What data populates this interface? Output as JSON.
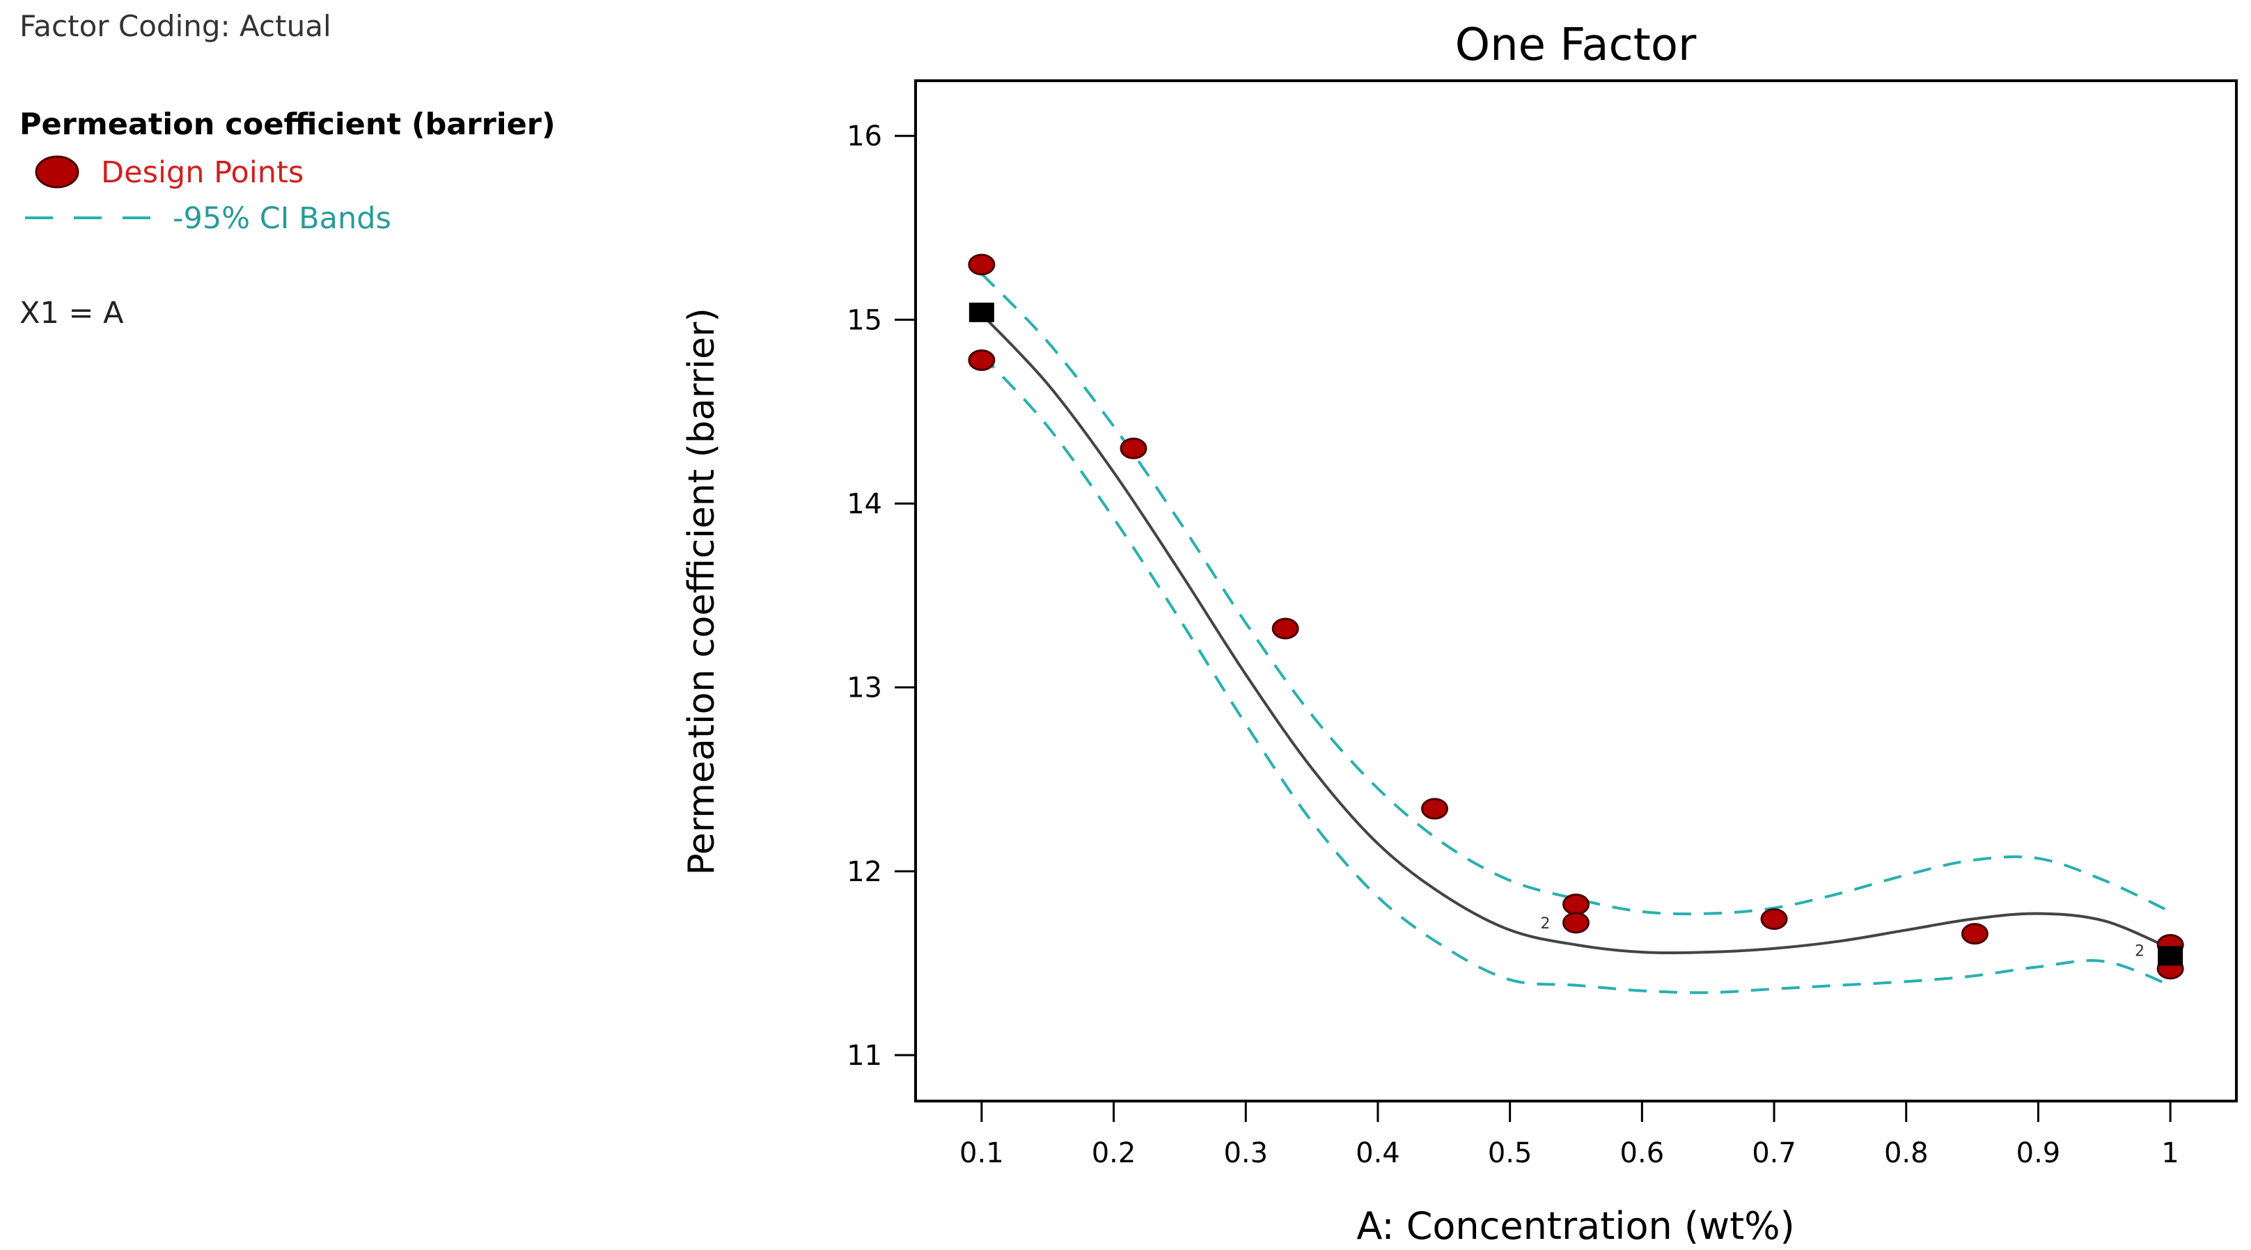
{
  "side_panel": {
    "factor_coding": "Factor Coding: Actual",
    "response_name": "Permeation coefficient (barrier)",
    "legend_design_points": "Design Points",
    "legend_ci_bands": "-95% CI Bands",
    "factor_mapping": "X1 = A"
  },
  "colors": {
    "design_point_fill": "#b00000",
    "design_point_stroke": "#4a0000",
    "design_point_label": "#d02020",
    "ci_band": "#2ab0b0",
    "fit_line": "#444444",
    "axis": "#000000",
    "prediction_marker": "#000000"
  },
  "chart_data": {
    "type": "line",
    "title": "One Factor",
    "xlabel": "A: Concentration (wt%)",
    "ylabel": "Permeation coefficient (barrier)",
    "xlim": [
      0.05,
      1.05
    ],
    "ylim": [
      10.75,
      16.3
    ],
    "x_ticks": [
      0.1,
      0.2,
      0.3,
      0.4,
      0.5,
      0.6,
      0.7,
      0.8,
      0.9,
      1
    ],
    "x_tick_labels": [
      "0.1",
      "0.2",
      "0.3",
      "0.4",
      "0.5",
      "0.6",
      "0.7",
      "0.8",
      "0.9",
      "1"
    ],
    "y_ticks": [
      11,
      12,
      13,
      14,
      15,
      16
    ],
    "y_tick_labels": [
      "11",
      "12",
      "13",
      "14",
      "15",
      "16"
    ],
    "legend_position": "left-outside",
    "series": [
      {
        "name": "Fit",
        "x": [
          0.1,
          0.15,
          0.2,
          0.25,
          0.3,
          0.35,
          0.4,
          0.45,
          0.5,
          0.55,
          0.6,
          0.65,
          0.7,
          0.75,
          0.8,
          0.85,
          0.9,
          0.95,
          1.0
        ],
        "values": [
          15.03,
          14.65,
          14.17,
          13.63,
          13.07,
          12.56,
          12.15,
          11.87,
          11.68,
          11.6,
          11.56,
          11.56,
          11.58,
          11.62,
          11.68,
          11.74,
          11.77,
          11.73,
          11.58
        ]
      },
      {
        "name": "95% CI Upper",
        "x": [
          0.1,
          0.15,
          0.2,
          0.25,
          0.3,
          0.35,
          0.4,
          0.45,
          0.5,
          0.55,
          0.6,
          0.65,
          0.7,
          0.75,
          0.8,
          0.85,
          0.9,
          0.95,
          1.0
        ],
        "values": [
          15.25,
          14.88,
          14.42,
          13.9,
          13.35,
          12.85,
          12.45,
          12.15,
          11.95,
          11.85,
          11.78,
          11.77,
          11.8,
          11.88,
          11.98,
          12.06,
          12.07,
          11.95,
          11.78
        ]
      },
      {
        "name": "95% CI Lower",
        "x": [
          0.1,
          0.15,
          0.2,
          0.25,
          0.3,
          0.35,
          0.4,
          0.45,
          0.5,
          0.55,
          0.6,
          0.65,
          0.7,
          0.75,
          0.8,
          0.85,
          0.9,
          0.95,
          1.0
        ],
        "values": [
          14.81,
          14.42,
          13.92,
          13.37,
          12.8,
          12.27,
          11.86,
          11.59,
          11.41,
          11.38,
          11.35,
          11.34,
          11.36,
          11.38,
          11.4,
          11.43,
          11.48,
          11.51,
          11.38
        ]
      }
    ],
    "design_points": [
      {
        "x": 0.1,
        "y": 15.3
      },
      {
        "x": 0.1,
        "y": 14.78
      },
      {
        "x": 0.215,
        "y": 14.3
      },
      {
        "x": 0.33,
        "y": 13.32
      },
      {
        "x": 0.443,
        "y": 12.34
      },
      {
        "x": 0.55,
        "y": 11.82
      },
      {
        "x": 0.55,
        "y": 11.72
      },
      {
        "x": 0.7,
        "y": 11.74
      },
      {
        "x": 0.852,
        "y": 11.66
      },
      {
        "x": 1.0,
        "y": 11.6
      },
      {
        "x": 1.0,
        "y": 11.47
      }
    ],
    "prediction_markers": [
      {
        "x": 0.1,
        "y": 15.04
      },
      {
        "x": 1.0,
        "y": 11.54
      }
    ],
    "point_count_labels": [
      {
        "x": 0.55,
        "y": 11.72,
        "label": "2"
      },
      {
        "x": 1.0,
        "y": 11.57,
        "label": "2"
      }
    ]
  }
}
